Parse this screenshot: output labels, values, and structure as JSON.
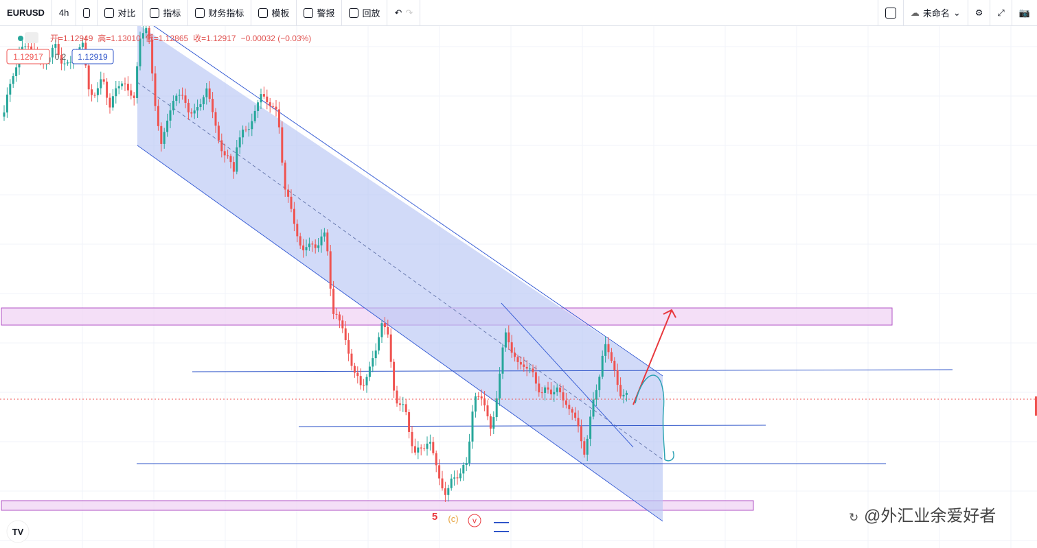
{
  "toolbar": {
    "symbol": "EURUSD",
    "interval": "4h",
    "items": [
      "对比",
      "指标",
      "财务指标",
      "模板",
      "警报",
      "回放"
    ],
    "layout_name": "未命名"
  },
  "legend": {
    "ohlc": [
      "开=1.12949",
      "高=1.13010",
      "低=1.12865",
      "收=1.12917",
      "−0.00032 (−0.03%)"
    ],
    "price_tags": [
      "1.12917",
      "0.2",
      "1.12919"
    ]
  },
  "annotations": {
    "waves": [
      "5",
      "(c)",
      "v"
    ]
  },
  "watermark": "@外汇业余爱好者"
}
